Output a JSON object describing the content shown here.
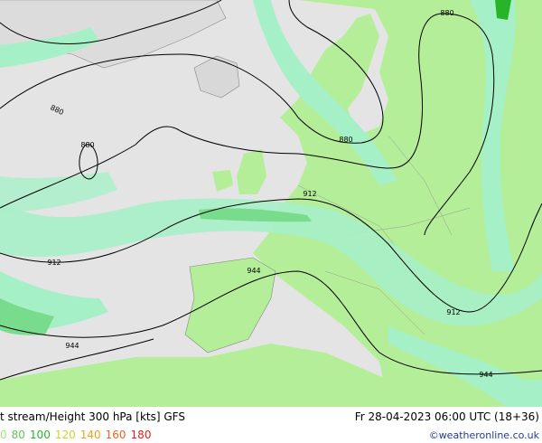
{
  "footer": {
    "title": "t stream/Height 300 hPa [kts] GFS",
    "datetime": "Fr 28-04-2023 06:00 UTC (18+36)",
    "credit": "©weatheronline.co.uk",
    "legend": [
      {
        "label": "0",
        "color": "#a0e678"
      },
      {
        "label": "80",
        "color": "#5ac85a"
      },
      {
        "label": "100",
        "color": "#28b428"
      },
      {
        "label": "120",
        "color": "#d2d22a"
      },
      {
        "label": "140",
        "color": "#f0a01e"
      },
      {
        "label": "160",
        "color": "#f0641e"
      },
      {
        "label": "180",
        "color": "#e61e1e"
      }
    ]
  },
  "map": {
    "contour_labels": [
      "880",
      "880",
      "880",
      "880",
      "912",
      "912",
      "912",
      "944",
      "944",
      "944"
    ]
  }
}
